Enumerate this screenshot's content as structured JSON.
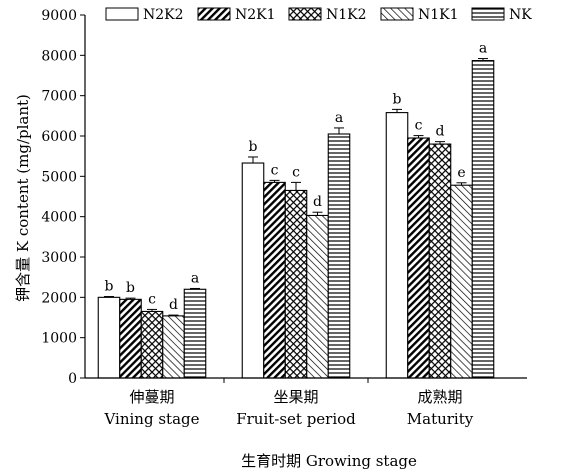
{
  "chart_data": {
    "type": "bar",
    "title": "",
    "xlabel": "生育时期 Growing stage",
    "ylabel": "钾含量 K content (mg/plant)",
    "ylim": [
      0,
      9000
    ],
    "yticks": [
      0,
      1000,
      2000,
      3000,
      4000,
      5000,
      6000,
      7000,
      8000,
      9000
    ],
    "grid": false,
    "legend_position": "top",
    "categories": [
      {
        "zh": "伸蔓期",
        "en": "Vining stage"
      },
      {
        "zh": "坐果期",
        "en": "Fruit-set period"
      },
      {
        "zh": "成熟期",
        "en": "Maturity"
      }
    ],
    "series": [
      {
        "name": "N2K2",
        "pattern": "blank",
        "values": [
          2000,
          5330,
          6580
        ],
        "errors": [
          20,
          150,
          80
        ],
        "labels": [
          "b",
          "b",
          "b"
        ]
      },
      {
        "name": "N2K1",
        "pattern": "diagonal",
        "values": [
          1950,
          4850,
          5950
        ],
        "errors": [
          30,
          50,
          60
        ],
        "labels": [
          "b",
          "c",
          "c"
        ]
      },
      {
        "name": "N1K2",
        "pattern": "crosshatch",
        "values": [
          1650,
          4650,
          5800
        ],
        "errors": [
          50,
          200,
          60
        ],
        "labels": [
          "c",
          "c",
          "d"
        ]
      },
      {
        "name": "N1K1",
        "pattern": "backdiagonal",
        "values": [
          1540,
          4030,
          4780
        ],
        "errors": [
          20,
          80,
          60
        ],
        "labels": [
          "d",
          "d",
          "e"
        ]
      },
      {
        "name": "NK",
        "pattern": "horizontal",
        "values": [
          2200,
          6050,
          7870
        ],
        "errors": [
          20,
          150,
          50
        ],
        "labels": [
          "a",
          "a",
          "a"
        ]
      }
    ]
  }
}
